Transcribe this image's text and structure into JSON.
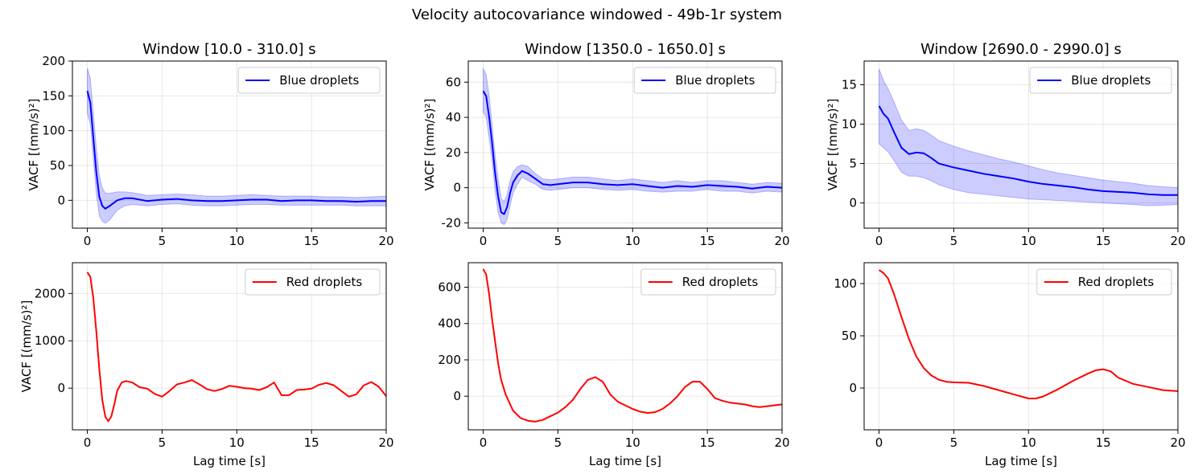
{
  "figure": {
    "suptitle": "Velocity autocovariance windowed - 49b-1r system"
  },
  "chart_data": [
    {
      "type": "line",
      "title": "Window [10.0 - 310.0] s",
      "ylabel": "VACF [(mm/s)²]",
      "xlabel": "",
      "xlim": [
        -1,
        20
      ],
      "ylim": [
        -40,
        200
      ],
      "xticks": [
        0,
        5,
        10,
        15,
        20
      ],
      "yticks": [
        0,
        50,
        100,
        150,
        200
      ],
      "grid": true,
      "legend_position": "upper right",
      "series": [
        {
          "name": "Blue droplets",
          "color": "#0000ff",
          "band": true,
          "x": [
            0,
            0.2,
            0.4,
            0.6,
            0.8,
            1,
            1.2,
            1.5,
            2,
            2.5,
            3,
            4,
            5,
            6,
            7,
            8,
            9,
            10,
            11,
            12,
            13,
            14,
            15,
            16,
            17,
            18,
            19,
            20
          ],
          "y": [
            157,
            140,
            90,
            40,
            5,
            -8,
            -12,
            -8,
            0,
            3,
            3,
            -1,
            1,
            2,
            0,
            -1,
            -1,
            0,
            1,
            1,
            -1,
            0,
            0,
            -1,
            -1,
            -2,
            -1,
            -1
          ],
          "upper": [
            190,
            175,
            125,
            75,
            35,
            18,
            10,
            10,
            12,
            12,
            11,
            7,
            8,
            9,
            8,
            6,
            6,
            7,
            8,
            7,
            6,
            6,
            6,
            5,
            5,
            4,
            5,
            6
          ],
          "lower": [
            125,
            110,
            60,
            10,
            -22,
            -30,
            -33,
            -28,
            -14,
            -8,
            -6,
            -8,
            -6,
            -5,
            -7,
            -8,
            -8,
            -7,
            -6,
            -6,
            -7,
            -7,
            -7,
            -7,
            -7,
            -8,
            -8,
            -8
          ]
        }
      ]
    },
    {
      "type": "line",
      "title": "Window [1350.0 - 1650.0] s",
      "ylabel": "VACF [(mm/s)²]",
      "xlabel": "",
      "xlim": [
        -1,
        20
      ],
      "ylim": [
        -23,
        72
      ],
      "xticks": [
        0,
        5,
        10,
        15,
        20
      ],
      "yticks": [
        -20,
        0,
        20,
        40,
        60
      ],
      "grid": true,
      "legend_position": "upper right",
      "series": [
        {
          "name": "Blue droplets",
          "color": "#0000ff",
          "band": true,
          "x": [
            0,
            0.2,
            0.4,
            0.6,
            0.8,
            1,
            1.2,
            1.4,
            1.6,
            1.8,
            2,
            2.3,
            2.6,
            3,
            3.5,
            4,
            4.5,
            5,
            6,
            7,
            8,
            9,
            10,
            11,
            12,
            13,
            14,
            15,
            16,
            17,
            18,
            19,
            20
          ],
          "y": [
            55,
            52,
            40,
            25,
            8,
            -5,
            -14,
            -15,
            -11,
            -3,
            3,
            7,
            9.5,
            8,
            5,
            2,
            1.5,
            2,
            3,
            3,
            2,
            1.5,
            2,
            1,
            0,
            1,
            0.5,
            1.5,
            1,
            0.5,
            -0.5,
            0.5,
            0
          ],
          "upper": [
            68,
            64,
            52,
            35,
            18,
            5,
            -6,
            -8,
            -4,
            4,
            9,
            12,
            13,
            12,
            8,
            5,
            4.5,
            5,
            6,
            6,
            5,
            4,
            5,
            4,
            3,
            4,
            3,
            4,
            4,
            3,
            2,
            3,
            2.5
          ],
          "lower": [
            43,
            40,
            28,
            15,
            -2,
            -14,
            -20,
            -21,
            -18,
            -10,
            -3,
            2,
            6,
            4,
            2,
            -1,
            -1.5,
            -1,
            0,
            0,
            -1,
            -1.5,
            -1,
            -2,
            -2.5,
            -2,
            -2,
            -1,
            -2,
            -2,
            -3,
            -2,
            -2.5
          ]
        }
      ]
    },
    {
      "type": "line",
      "title": "Window [2690.0 - 2990.0] s",
      "ylabel": "VACF [(mm/s)²]",
      "xlabel": "",
      "xlim": [
        -1,
        20
      ],
      "ylim": [
        -3.2,
        18
      ],
      "xticks": [
        0,
        5,
        10,
        15,
        20
      ],
      "yticks": [
        0,
        5,
        10,
        15
      ],
      "grid": true,
      "legend_position": "upper right",
      "series": [
        {
          "name": "Blue droplets",
          "color": "#0000ff",
          "band": true,
          "x": [
            0,
            0.3,
            0.6,
            1,
            1.5,
            2,
            2.5,
            3,
            3.5,
            4,
            5,
            6,
            7,
            8,
            9,
            10,
            11,
            12,
            13,
            14,
            15,
            16,
            17,
            18,
            19,
            20
          ],
          "y": [
            12.3,
            11.3,
            10.7,
            9,
            7,
            6.2,
            6.4,
            6.3,
            5.7,
            5,
            4.5,
            4.1,
            3.7,
            3.4,
            3.1,
            2.7,
            2.4,
            2.2,
            2,
            1.7,
            1.5,
            1.4,
            1.3,
            1.1,
            1,
            1
          ],
          "upper": [
            17,
            15.5,
            14.5,
            12.8,
            10.5,
            9.2,
            9.4,
            9.2,
            8.6,
            7.9,
            7.2,
            6.6,
            6.1,
            5.6,
            5.2,
            4.7,
            4.2,
            3.8,
            3.5,
            3.2,
            2.9,
            2.7,
            2.5,
            2.2,
            2.05,
            1.95
          ],
          "lower": [
            7.5,
            7,
            6.5,
            5.4,
            3.9,
            3.4,
            3.4,
            3.2,
            2.8,
            2.3,
            1.7,
            1.3,
            1.1,
            0.9,
            0.7,
            0.5,
            0.4,
            0.3,
            0.2,
            0.1,
            0,
            -0.1,
            -0.2,
            -0.35,
            -0.3,
            -0.2
          ]
        }
      ]
    },
    {
      "type": "line",
      "title": "",
      "ylabel": "VACF [(mm/s)²]",
      "xlabel": "Lag time [s]",
      "xlim": [
        -1,
        20
      ],
      "ylim": [
        -880,
        2650
      ],
      "xticks": [
        0,
        5,
        10,
        15,
        20
      ],
      "yticks": [
        0,
        1000,
        2000
      ],
      "grid": true,
      "legend_position": "upper right",
      "series": [
        {
          "name": "Red droplets",
          "color": "#ff0000",
          "band": false,
          "x": [
            0,
            0.2,
            0.4,
            0.6,
            0.8,
            1,
            1.2,
            1.4,
            1.6,
            1.8,
            2,
            2.3,
            2.6,
            3,
            3.5,
            4,
            4.5,
            5,
            5.5,
            6,
            6.5,
            7,
            7.5,
            8,
            8.5,
            9,
            9.5,
            10,
            10.5,
            11,
            11.5,
            12,
            12.5,
            13,
            13.5,
            14,
            14.5,
            15,
            15.5,
            16,
            16.5,
            17,
            17.5,
            18,
            18.5,
            19,
            19.5,
            20
          ],
          "y": [
            2450,
            2350,
            1900,
            1200,
            400,
            -250,
            -600,
            -700,
            -600,
            -350,
            -50,
            120,
            150,
            120,
            20,
            -10,
            -120,
            -180,
            -60,
            80,
            120,
            170,
            80,
            -20,
            -60,
            -20,
            50,
            30,
            0,
            -10,
            -40,
            20,
            120,
            -150,
            -150,
            -40,
            -30,
            -10,
            70,
            110,
            60,
            -60,
            -180,
            -130,
            60,
            130,
            30,
            -170
          ],
          "upper": [],
          "lower": []
        }
      ]
    },
    {
      "type": "line",
      "title": "",
      "ylabel": "",
      "xlabel": "Lag time [s]",
      "xlim": [
        -1,
        20
      ],
      "ylim": [
        -185,
        735
      ],
      "xticks": [
        0,
        5,
        10,
        15,
        20
      ],
      "yticks": [
        0,
        200,
        400,
        600
      ],
      "grid": true,
      "legend_position": "upper right",
      "series": [
        {
          "name": "Red droplets",
          "color": "#ff0000",
          "band": false,
          "x": [
            0,
            0.2,
            0.4,
            0.6,
            0.8,
            1,
            1.2,
            1.5,
            2,
            2.5,
            3,
            3.5,
            4,
            4.5,
            5,
            5.5,
            6,
            6.5,
            7,
            7.5,
            8,
            8.5,
            9,
            9.5,
            10,
            10.5,
            11,
            11.5,
            12,
            12.5,
            13,
            13.5,
            14,
            14.5,
            15,
            15.5,
            16,
            16.5,
            17,
            17.5,
            18,
            18.5,
            19,
            19.5,
            20
          ],
          "y": [
            700,
            670,
            560,
            420,
            300,
            180,
            90,
            10,
            -80,
            -120,
            -135,
            -140,
            -130,
            -110,
            -90,
            -60,
            -20,
            40,
            90,
            105,
            80,
            10,
            -30,
            -50,
            -70,
            -85,
            -92,
            -88,
            -70,
            -40,
            0,
            50,
            80,
            80,
            40,
            -10,
            -25,
            -35,
            -40,
            -45,
            -55,
            -60,
            -55,
            -50,
            -45
          ],
          "upper": [],
          "lower": []
        }
      ]
    },
    {
      "type": "line",
      "title": "",
      "ylabel": "",
      "xlabel": "Lag time [s]",
      "xlim": [
        -1,
        20
      ],
      "ylim": [
        -40,
        120
      ],
      "xticks": [
        0,
        5,
        10,
        15,
        20
      ],
      "yticks": [
        0,
        50,
        100
      ],
      "grid": true,
      "legend_position": "upper right",
      "series": [
        {
          "name": "Red droplets",
          "color": "#ff0000",
          "band": false,
          "x": [
            0,
            0.3,
            0.6,
            1,
            1.5,
            2,
            2.5,
            3,
            3.5,
            4,
            4.5,
            5,
            6,
            7,
            8,
            9,
            10,
            10.5,
            11,
            12,
            13,
            14,
            14.5,
            15,
            15.5,
            16,
            17,
            18,
            19,
            20
          ],
          "y": [
            113,
            110,
            105,
            90,
            68,
            47,
            30,
            19,
            12,
            8,
            6,
            5.5,
            5,
            2,
            -2,
            -6,
            -10,
            -10,
            -8,
            -1,
            7,
            14,
            17,
            18,
            16,
            10,
            4,
            1,
            -2,
            -3
          ],
          "upper": [],
          "lower": []
        }
      ]
    }
  ]
}
